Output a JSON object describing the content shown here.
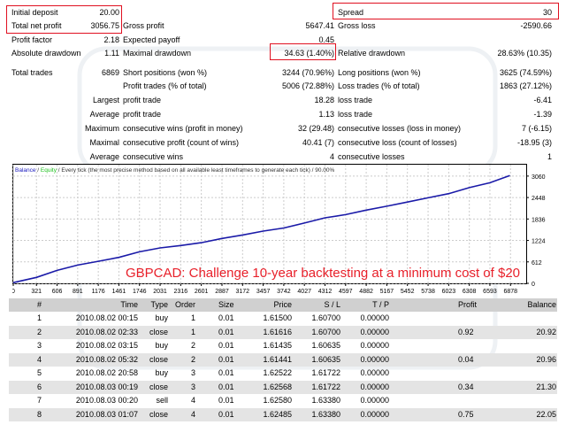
{
  "summary": {
    "initial_deposit": {
      "label": "Initial deposit",
      "value": "20.00"
    },
    "spread": {
      "label": "Spread",
      "value": "30"
    },
    "total_net_profit": {
      "label": "Total net profit",
      "value": "3056.75"
    },
    "gross_profit": {
      "label": "Gross profit",
      "value": "5647.41"
    },
    "gross_loss": {
      "label": "Gross loss",
      "value": "-2590.66"
    },
    "profit_factor": {
      "label": "Profit factor",
      "value": "2.18"
    },
    "expected_payoff": {
      "label": "Expected payoff",
      "value": "0.45"
    },
    "absolute_drawdown": {
      "label": "Absolute drawdown",
      "value": "1.11"
    },
    "maximal_drawdown": {
      "label": "Maximal drawdown",
      "value": "34.63 (1.40%)"
    },
    "relative_drawdown": {
      "label": "Relative drawdown",
      "value": "28.63% (10.35)"
    },
    "total_trades": {
      "label": "Total trades",
      "value": "6869"
    },
    "short_positions": {
      "label": "Short positions (won %)",
      "value": "3244 (70.96%)"
    },
    "long_positions": {
      "label": "Long positions (won %)",
      "value": "3625 (74.59%)"
    },
    "profit_trades": {
      "label": "Profit trades (% of total)",
      "value": "5006 (72.88%)"
    },
    "loss_trades": {
      "label": "Loss trades (% of total)",
      "value": "1863 (27.12%)"
    },
    "largest": {
      "prefix": "Largest",
      "profit_label": "profit trade",
      "profit_value": "18.28",
      "loss_label": "loss trade",
      "loss_value": "-6.41"
    },
    "average": {
      "prefix": "Average",
      "profit_label": "profit trade",
      "profit_value": "1.13",
      "loss_label": "loss trade",
      "loss_value": "-1.39"
    },
    "maximum": {
      "prefix": "Maximum",
      "wins_label": "consecutive wins (profit in money)",
      "wins_value": "32 (29.48)",
      "loss_label": "consecutive losses (loss in money)",
      "loss_value": "7 (-6.15)"
    },
    "maximal": {
      "prefix": "Maximal",
      "wins_label": "consecutive profit (count of wins)",
      "wins_value": "40.41 (7)",
      "loss_label": "consecutive loss (count of losses)",
      "loss_value": "-18.95 (3)"
    },
    "average_consec": {
      "prefix": "Average",
      "wins_label": "consecutive wins",
      "wins_value": "4",
      "loss_label": "consecutive losses",
      "loss_value": "1"
    }
  },
  "chart_data": {
    "type": "line",
    "legend_balance": "Balance",
    "legend_equity": "Equity",
    "legend_rest": " / Every tick (the most precise method based on all available least timeframes to generate each tick) / 90.00%",
    "annotation": "GBPCAD: Challenge 10-year backtesting at a minimum cost of $20",
    "x_ticks": [
      0,
      321,
      606,
      891,
      1176,
      1461,
      1746,
      2031,
      2316,
      2601,
      2887,
      3172,
      3457,
      3742,
      4027,
      4312,
      4597,
      4882,
      5167,
      5452,
      5738,
      6023,
      6308,
      6593,
      6878
    ],
    "y_ticks": [
      0,
      612,
      1224,
      1836,
      2448,
      3060
    ],
    "xlim": [
      0,
      7095
    ],
    "ylim": [
      0,
      3360
    ],
    "grid": true,
    "series": [
      {
        "name": "Balance",
        "color": "#1a1aa8",
        "x": [
          0,
          321,
          606,
          891,
          1176,
          1461,
          1746,
          2031,
          2316,
          2601,
          2887,
          3172,
          3457,
          3742,
          4027,
          4312,
          4597,
          4882,
          5167,
          5452,
          5738,
          6023,
          6308,
          6593,
          6869
        ],
        "y": [
          20,
          170,
          370,
          520,
          630,
          740,
          900,
          1010,
          1080,
          1160,
          1280,
          1380,
          1490,
          1580,
          1720,
          1870,
          1960,
          2090,
          2200,
          2320,
          2440,
          2560,
          2730,
          2870,
          3076
        ]
      }
    ]
  },
  "trades": {
    "headers": [
      "#",
      "Time",
      "Type",
      "Order",
      "Size",
      "Price",
      "S / L",
      "T / P",
      "Profit",
      "Balance"
    ],
    "rows": [
      [
        "1",
        "2010.08.02 00:15",
        "buy",
        "1",
        "0.01",
        "1.61500",
        "1.60700",
        "0.00000",
        "",
        ""
      ],
      [
        "2",
        "2010.08.02 02:33",
        "close",
        "1",
        "0.01",
        "1.61616",
        "1.60700",
        "0.00000",
        "0.92",
        "20.92"
      ],
      [
        "3",
        "2010.08.02 03:15",
        "buy",
        "2",
        "0.01",
        "1.61435",
        "1.60635",
        "0.00000",
        "",
        ""
      ],
      [
        "4",
        "2010.08.02 05:32",
        "close",
        "2",
        "0.01",
        "1.61441",
        "1.60635",
        "0.00000",
        "0.04",
        "20.96"
      ],
      [
        "5",
        "2010.08.02 20:58",
        "buy",
        "3",
        "0.01",
        "1.62522",
        "1.61722",
        "0.00000",
        "",
        ""
      ],
      [
        "6",
        "2010.08.03 00:19",
        "close",
        "3",
        "0.01",
        "1.62568",
        "1.61722",
        "0.00000",
        "0.34",
        "21.30"
      ],
      [
        "7",
        "2010.08.03 00:20",
        "sell",
        "4",
        "0.01",
        "1.62580",
        "1.63380",
        "0.00000",
        "",
        ""
      ],
      [
        "8",
        "2010.08.03 01:07",
        "close",
        "4",
        "0.01",
        "1.62485",
        "1.63380",
        "0.00000",
        "0.75",
        "22.05"
      ]
    ]
  },
  "watermark": "EA.TOP"
}
